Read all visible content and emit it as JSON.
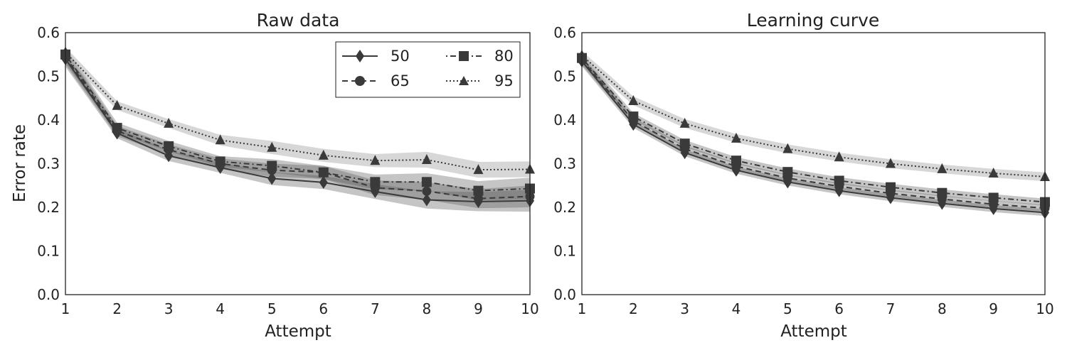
{
  "chart_data": [
    {
      "type": "line",
      "title": "Raw data",
      "xlabel": "Attempt",
      "ylabel": "Error rate",
      "xlim": [
        1,
        10
      ],
      "ylim": [
        0.0,
        0.6
      ],
      "xticks": [
        1,
        2,
        3,
        4,
        5,
        6,
        7,
        8,
        9,
        10
      ],
      "yticks": [
        "0.0",
        "0.1",
        "0.2",
        "0.3",
        "0.4",
        "0.5",
        "0.6"
      ],
      "grid": false,
      "legend": {
        "placement": "top-right",
        "columns": 2
      },
      "x": [
        1,
        2,
        3,
        4,
        5,
        6,
        7,
        8,
        9,
        10
      ],
      "series": [
        {
          "name": "50",
          "marker": "diamond",
          "linestyle": "solid",
          "values": [
            0.54,
            0.37,
            0.318,
            0.291,
            0.266,
            0.257,
            0.236,
            0.217,
            0.213,
            0.215
          ],
          "band": [
            0.018,
            0.012,
            0.012,
            0.012,
            0.015,
            0.015,
            0.017,
            0.02,
            0.022,
            0.025
          ]
        },
        {
          "name": "65",
          "marker": "circle",
          "linestyle": "dashed",
          "values": [
            0.545,
            0.375,
            0.332,
            0.3,
            0.285,
            0.28,
            0.245,
            0.237,
            0.22,
            0.225
          ],
          "band": [
            0.018,
            0.012,
            0.012,
            0.012,
            0.015,
            0.015,
            0.017,
            0.02,
            0.022,
            0.025
          ]
        },
        {
          "name": "80",
          "marker": "square",
          "linestyle": "dashdot",
          "values": [
            0.55,
            0.382,
            0.34,
            0.305,
            0.295,
            0.28,
            0.258,
            0.258,
            0.238,
            0.243
          ],
          "band": [
            0.018,
            0.012,
            0.012,
            0.012,
            0.015,
            0.015,
            0.017,
            0.02,
            0.022,
            0.025
          ]
        },
        {
          "name": "95",
          "marker": "triangle",
          "linestyle": "dotted",
          "values": [
            0.555,
            0.433,
            0.392,
            0.354,
            0.337,
            0.319,
            0.307,
            0.309,
            0.286,
            0.287
          ],
          "band": [
            0.012,
            0.01,
            0.01,
            0.012,
            0.015,
            0.015,
            0.015,
            0.018,
            0.018,
            0.018
          ]
        }
      ]
    },
    {
      "type": "line",
      "title": "Learning curve",
      "xlabel": "Attempt",
      "ylabel": "",
      "xlim": [
        1,
        10
      ],
      "ylim": [
        0.0,
        0.6
      ],
      "xticks": [
        1,
        2,
        3,
        4,
        5,
        6,
        7,
        8,
        9,
        10
      ],
      "yticks": [
        "0.0",
        "0.1",
        "0.2",
        "0.3",
        "0.4",
        "0.5",
        "0.6"
      ],
      "grid": false,
      "x": [
        1,
        2,
        3,
        4,
        5,
        6,
        7,
        8,
        9,
        10
      ],
      "series": [
        {
          "name": "50",
          "marker": "diamond",
          "linestyle": "solid",
          "values": [
            0.535,
            0.39,
            0.325,
            0.285,
            0.258,
            0.238,
            0.222,
            0.209,
            0.197,
            0.188
          ],
          "band": [
            0.012,
            0.008,
            0.008,
            0.008,
            0.008,
            0.008,
            0.008,
            0.008,
            0.008,
            0.008
          ]
        },
        {
          "name": "65",
          "marker": "circle",
          "linestyle": "dashed",
          "values": [
            0.538,
            0.398,
            0.334,
            0.294,
            0.267,
            0.248,
            0.232,
            0.219,
            0.207,
            0.198
          ],
          "band": [
            0.012,
            0.008,
            0.008,
            0.008,
            0.008,
            0.008,
            0.008,
            0.008,
            0.008,
            0.008
          ]
        },
        {
          "name": "80",
          "marker": "square",
          "linestyle": "dashdot",
          "values": [
            0.542,
            0.408,
            0.346,
            0.307,
            0.281,
            0.261,
            0.246,
            0.233,
            0.222,
            0.212
          ],
          "band": [
            0.012,
            0.008,
            0.008,
            0.008,
            0.008,
            0.008,
            0.008,
            0.008,
            0.008,
            0.008
          ]
        },
        {
          "name": "95",
          "marker": "triangle",
          "linestyle": "dotted",
          "values": [
            0.548,
            0.444,
            0.392,
            0.358,
            0.334,
            0.315,
            0.3,
            0.288,
            0.278,
            0.27
          ],
          "band": [
            0.01,
            0.01,
            0.01,
            0.01,
            0.01,
            0.01,
            0.01,
            0.01,
            0.01,
            0.01
          ]
        }
      ]
    }
  ],
  "colors": {
    "line": "#3a3a3a",
    "band_dark": "#5a5a5a",
    "band_light": "#bdbdbd",
    "axis": "#222222"
  }
}
